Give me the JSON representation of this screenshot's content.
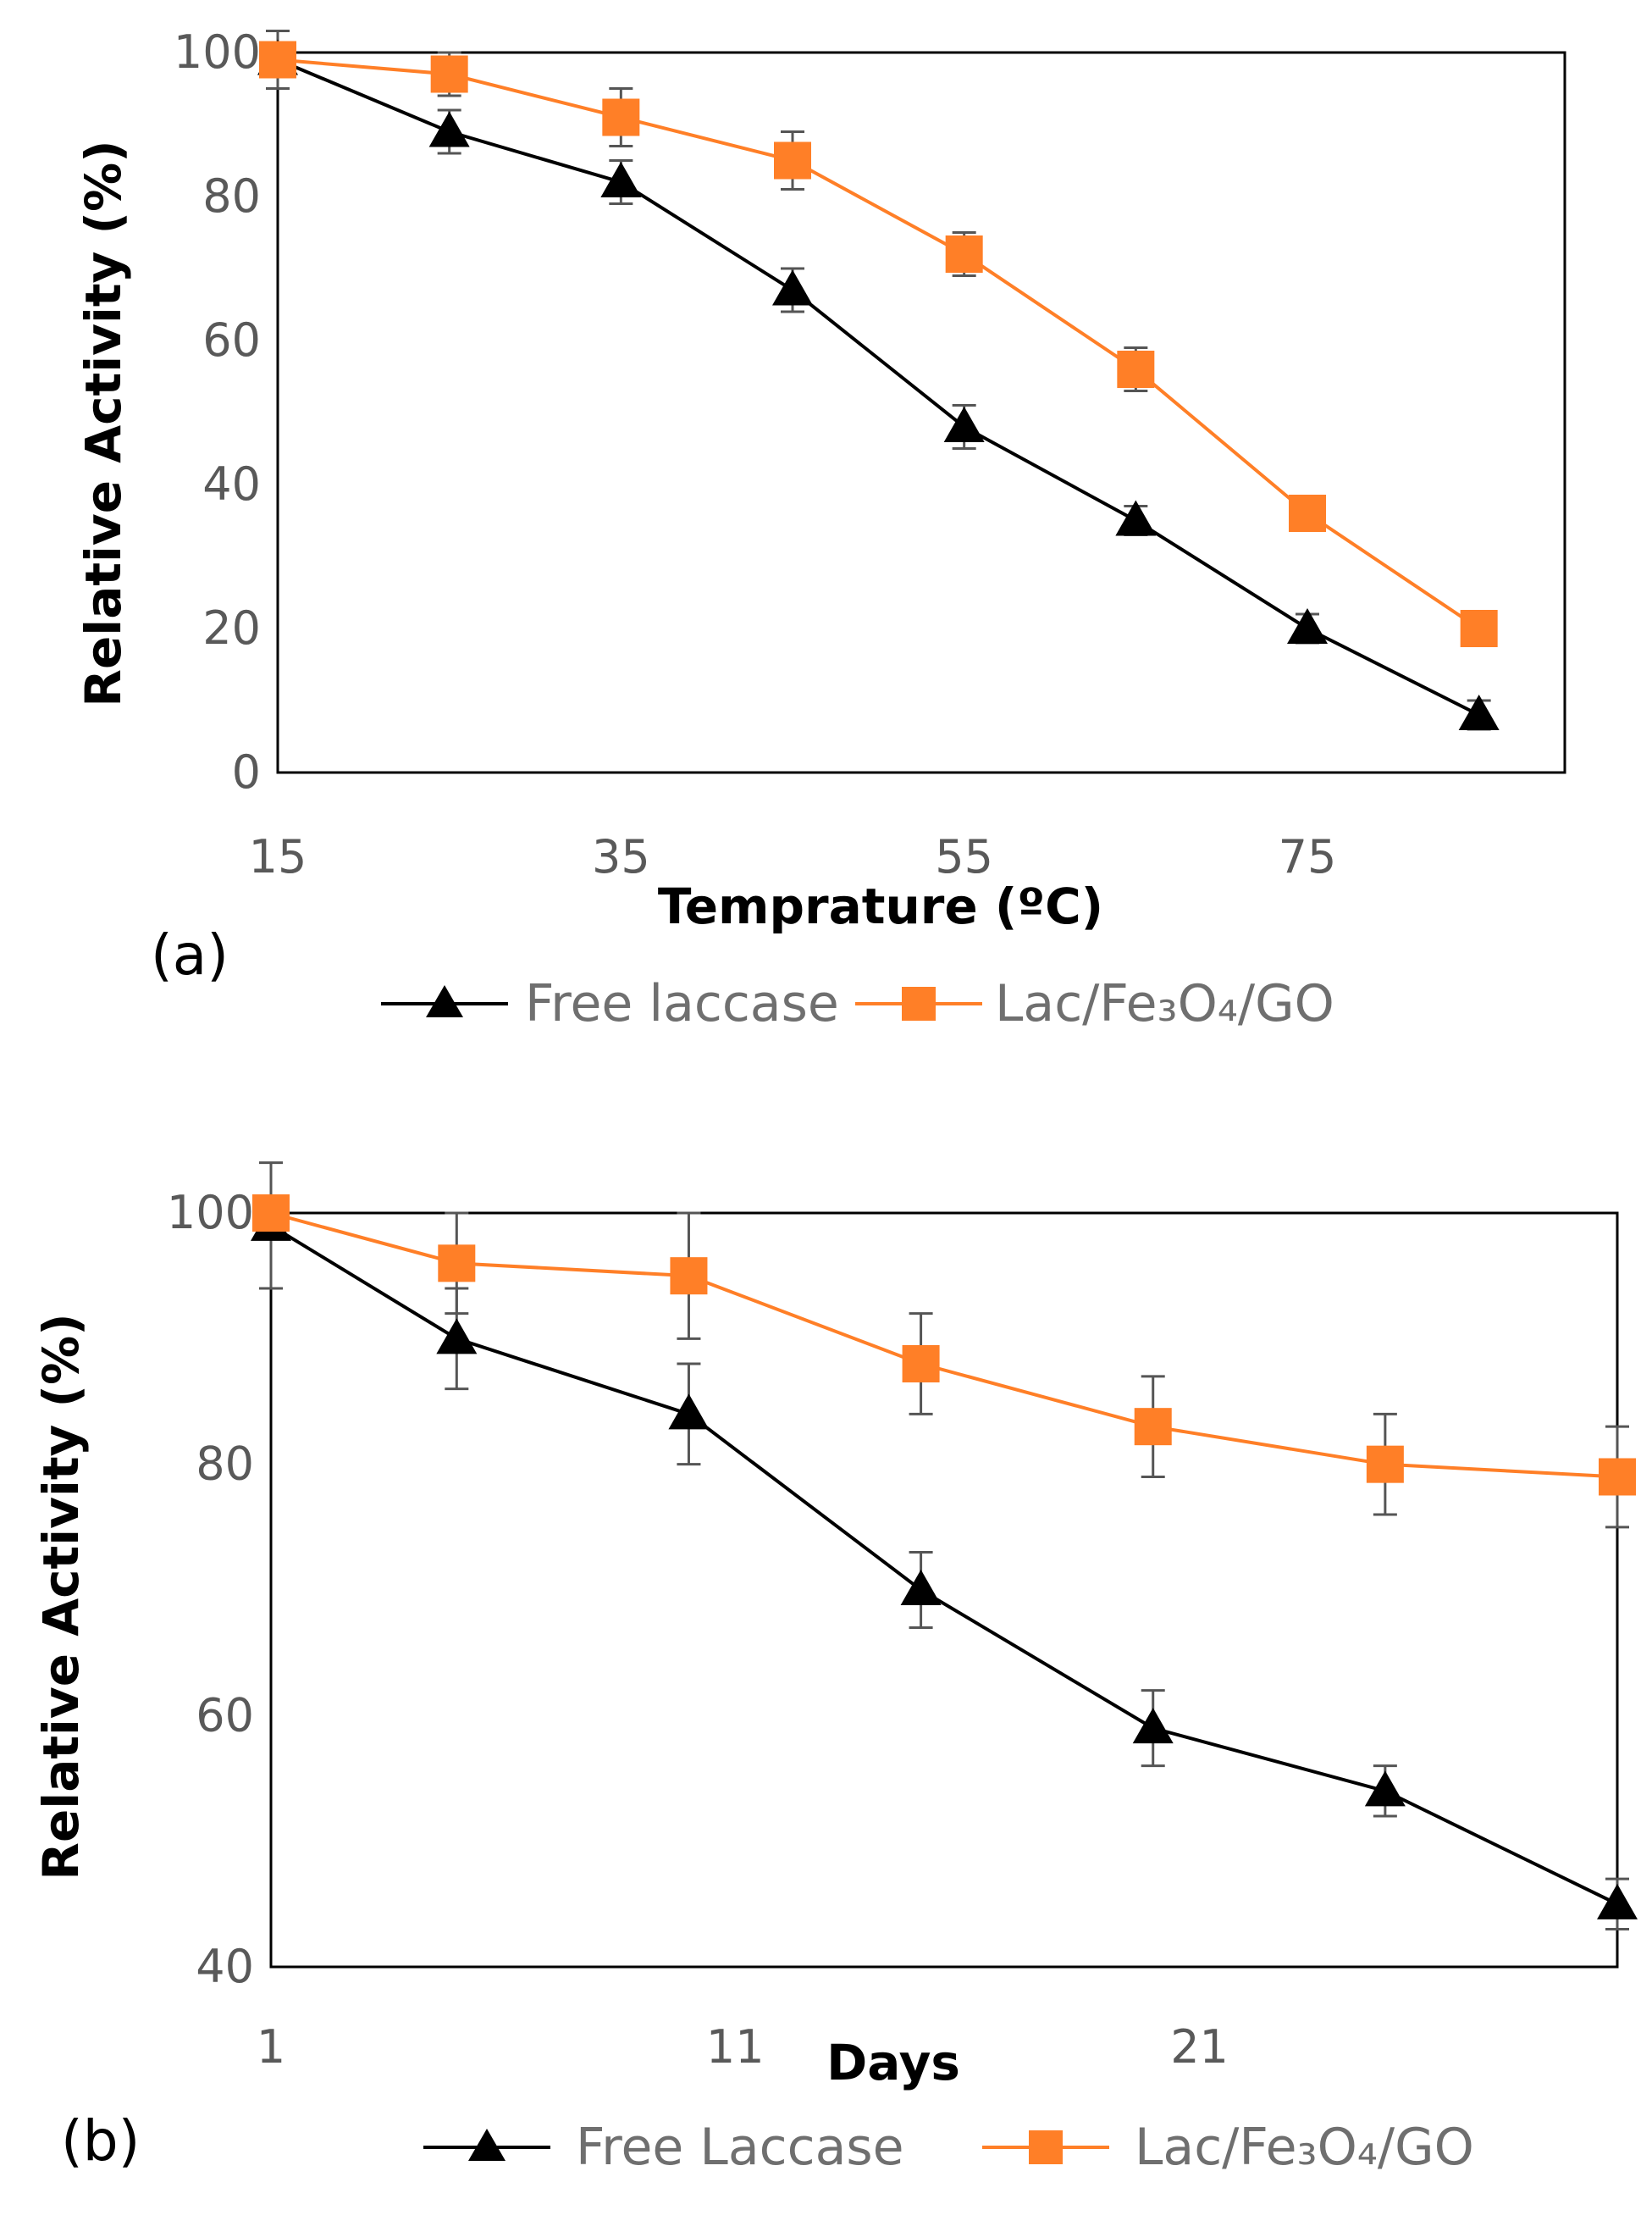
{
  "chart_data": [
    {
      "type": "line",
      "panel_label": "(a)",
      "xlabel": "Temprature (ºC)",
      "ylabel": "Relative Activity (%)",
      "xlim": [
        15,
        90
      ],
      "ylim": [
        0,
        100
      ],
      "x_ticks": [
        "15",
        "35",
        "55",
        "75"
      ],
      "x_tick_values": [
        15,
        35,
        55,
        75
      ],
      "y_ticks": [
        "0",
        "20",
        "40",
        "60",
        "80",
        "100"
      ],
      "y_tick_values": [
        0,
        20,
        40,
        60,
        80,
        100
      ],
      "x": [
        15,
        25,
        35,
        45,
        55,
        65,
        75,
        85
      ],
      "legend_position": "bottom",
      "series": [
        {
          "name": "Free laccase",
          "marker": "triangle",
          "color": "#000000",
          "values": [
            99,
            89,
            82,
            67,
            48,
            35,
            20,
            8
          ],
          "errors": [
            4,
            3,
            3,
            3,
            3,
            2,
            2,
            2
          ]
        },
        {
          "name": "Lac/Fe₃O₄/GO",
          "marker": "square",
          "color": "#ff7f27",
          "values": [
            99,
            97,
            91,
            85,
            72,
            56,
            36,
            20
          ],
          "errors": [
            2,
            3,
            4,
            4,
            3,
            3,
            2,
            2
          ]
        }
      ]
    },
    {
      "type": "line",
      "panel_label": "(b)",
      "xlabel": "Days",
      "ylabel": "Relative Activity (%)",
      "xlim": [
        1,
        30
      ],
      "ylim": [
        40,
        100
      ],
      "x_ticks": [
        "1",
        "11",
        "21"
      ],
      "x_tick_values": [
        1,
        11,
        21
      ],
      "y_ticks": [
        "40",
        "60",
        "80",
        "100"
      ],
      "y_tick_values": [
        40,
        60,
        80,
        100
      ],
      "x": [
        1,
        5,
        10,
        15,
        20,
        25,
        30
      ],
      "legend_position": "bottom",
      "series": [
        {
          "name": "Free Laccase",
          "marker": "triangle",
          "color": "#000000",
          "values": [
            99,
            90,
            84,
            70,
            59,
            54,
            45
          ],
          "errors": [
            5,
            4,
            4,
            3,
            3,
            2,
            2
          ]
        },
        {
          "name": "Lac/Fe₃O₄/GO",
          "marker": "square",
          "color": "#ff7f27",
          "values": [
            100,
            96,
            95,
            88,
            83,
            80,
            79
          ],
          "errors": [
            1,
            4,
            5,
            4,
            4,
            4,
            4
          ]
        }
      ]
    }
  ]
}
